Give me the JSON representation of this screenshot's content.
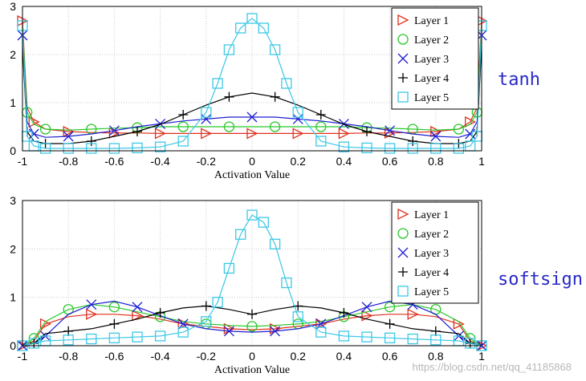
{
  "watermark": "https://blog.csdn.net/qq_41185868",
  "chart_data": [
    {
      "type": "line",
      "side_label": "tanh",
      "xlabel": "Activation Value",
      "xlim": [
        -1,
        1
      ],
      "ylim": [
        0,
        3
      ],
      "xticks": [
        "-1",
        "-0.8",
        "-0.6",
        "-0.4",
        "-0.2",
        "0",
        "0.2",
        "0.4",
        "0.6",
        "0.8",
        "1"
      ],
      "yticks": [
        "0",
        "1",
        "2",
        "3"
      ],
      "grid": true,
      "legend": "top-right",
      "series": [
        {
          "name": "Layer 1",
          "color": "#e0301e",
          "marker": "triangle-right",
          "x": [
            -1,
            -0.98,
            -0.95,
            -0.9,
            -0.8,
            -0.7,
            -0.6,
            -0.5,
            -0.4,
            -0.3,
            -0.2,
            -0.1,
            0,
            0.1,
            0.2,
            0.3,
            0.4,
            0.5,
            0.6,
            0.7,
            0.8,
            0.9,
            0.95,
            0.98,
            1
          ],
          "y": [
            2.7,
            0.9,
            0.6,
            0.45,
            0.4,
            0.38,
            0.37,
            0.37,
            0.36,
            0.36,
            0.36,
            0.36,
            0.36,
            0.36,
            0.36,
            0.36,
            0.36,
            0.37,
            0.37,
            0.38,
            0.4,
            0.45,
            0.6,
            0.9,
            2.7
          ]
        },
        {
          "name": "Layer 2",
          "color": "#28c828",
          "marker": "circle",
          "x": [
            -1,
            -0.98,
            -0.95,
            -0.9,
            -0.8,
            -0.7,
            -0.6,
            -0.5,
            -0.4,
            -0.3,
            -0.2,
            -0.1,
            0,
            0.1,
            0.2,
            0.3,
            0.4,
            0.5,
            0.6,
            0.7,
            0.8,
            0.9,
            0.95,
            0.98,
            1
          ],
          "y": [
            2.6,
            0.8,
            0.55,
            0.45,
            0.43,
            0.45,
            0.47,
            0.48,
            0.5,
            0.5,
            0.5,
            0.5,
            0.5,
            0.5,
            0.5,
            0.5,
            0.5,
            0.48,
            0.47,
            0.45,
            0.43,
            0.45,
            0.55,
            0.8,
            2.6
          ]
        },
        {
          "name": "Layer 3",
          "color": "#1e1ed2",
          "marker": "x",
          "x": [
            -1,
            -0.98,
            -0.95,
            -0.9,
            -0.8,
            -0.7,
            -0.6,
            -0.5,
            -0.4,
            -0.3,
            -0.2,
            -0.1,
            0,
            0.1,
            0.2,
            0.3,
            0.4,
            0.5,
            0.6,
            0.7,
            0.8,
            0.9,
            0.95,
            0.98,
            1
          ],
          "y": [
            2.4,
            0.6,
            0.35,
            0.28,
            0.3,
            0.35,
            0.42,
            0.5,
            0.56,
            0.62,
            0.66,
            0.7,
            0.7,
            0.7,
            0.66,
            0.62,
            0.56,
            0.5,
            0.42,
            0.35,
            0.3,
            0.28,
            0.35,
            0.6,
            2.4
          ]
        },
        {
          "name": "Layer 4",
          "color": "#000000",
          "marker": "plus",
          "x": [
            -1,
            -0.98,
            -0.95,
            -0.9,
            -0.8,
            -0.7,
            -0.6,
            -0.5,
            -0.4,
            -0.3,
            -0.2,
            -0.1,
            0,
            0.1,
            0.2,
            0.3,
            0.4,
            0.5,
            0.6,
            0.7,
            0.8,
            0.9,
            0.95,
            0.98,
            1
          ],
          "y": [
            2.2,
            0.4,
            0.2,
            0.15,
            0.15,
            0.2,
            0.3,
            0.4,
            0.55,
            0.75,
            0.95,
            1.12,
            1.2,
            1.12,
            0.95,
            0.75,
            0.55,
            0.4,
            0.3,
            0.2,
            0.15,
            0.15,
            0.2,
            0.4,
            2.2
          ]
        },
        {
          "name": "Layer 5",
          "color": "#3cc8e6",
          "marker": "square",
          "x": [
            -1,
            -0.98,
            -0.95,
            -0.9,
            -0.8,
            -0.7,
            -0.6,
            -0.5,
            -0.4,
            -0.3,
            -0.2,
            -0.15,
            -0.1,
            -0.05,
            0,
            0.05,
            0.1,
            0.15,
            0.2,
            0.3,
            0.4,
            0.5,
            0.6,
            0.7,
            0.8,
            0.9,
            0.95,
            0.98,
            1
          ],
          "y": [
            2.6,
            0.3,
            0.1,
            0.05,
            0.05,
            0.05,
            0.05,
            0.06,
            0.08,
            0.2,
            0.8,
            1.4,
            2.1,
            2.55,
            2.75,
            2.55,
            2.1,
            1.4,
            0.8,
            0.2,
            0.08,
            0.06,
            0.05,
            0.05,
            0.05,
            0.05,
            0.1,
            0.3,
            2.6
          ]
        }
      ]
    },
    {
      "type": "line",
      "side_label": "softsign",
      "xlabel": "Activation Value",
      "xlim": [
        -1,
        1
      ],
      "ylim": [
        0,
        3
      ],
      "xticks": [
        "-1",
        "-0.8",
        "-0.6",
        "-0.4",
        "-0.2",
        "0",
        "0.2",
        "0.4",
        "0.6",
        "0.8",
        "1"
      ],
      "yticks": [
        "0",
        "1",
        "2",
        "3"
      ],
      "grid": true,
      "legend": "top-right",
      "series": [
        {
          "name": "Layer 1",
          "color": "#e0301e",
          "marker": "triangle-right",
          "x": [
            -1,
            -0.95,
            -0.9,
            -0.8,
            -0.7,
            -0.6,
            -0.5,
            -0.4,
            -0.3,
            -0.2,
            -0.1,
            0,
            0.1,
            0.2,
            0.3,
            0.4,
            0.5,
            0.6,
            0.7,
            0.8,
            0.9,
            0.95,
            1
          ],
          "y": [
            0.0,
            0.1,
            0.45,
            0.6,
            0.65,
            0.65,
            0.62,
            0.55,
            0.45,
            0.4,
            0.35,
            0.33,
            0.35,
            0.4,
            0.45,
            0.55,
            0.62,
            0.65,
            0.65,
            0.6,
            0.45,
            0.1,
            0.0
          ]
        },
        {
          "name": "Layer 2",
          "color": "#28c828",
          "marker": "circle",
          "x": [
            -1,
            -0.95,
            -0.9,
            -0.8,
            -0.7,
            -0.6,
            -0.5,
            -0.4,
            -0.3,
            -0.2,
            -0.1,
            0,
            0.1,
            0.2,
            0.3,
            0.4,
            0.5,
            0.6,
            0.7,
            0.8,
            0.9,
            0.95,
            1
          ],
          "y": [
            0.0,
            0.15,
            0.5,
            0.75,
            0.85,
            0.8,
            0.7,
            0.6,
            0.5,
            0.45,
            0.42,
            0.4,
            0.42,
            0.45,
            0.5,
            0.6,
            0.7,
            0.8,
            0.85,
            0.75,
            0.5,
            0.15,
            0.0
          ]
        },
        {
          "name": "Layer 3",
          "color": "#1e1ed2",
          "marker": "x",
          "x": [
            -1,
            -0.95,
            -0.9,
            -0.8,
            -0.7,
            -0.6,
            -0.5,
            -0.4,
            -0.3,
            -0.2,
            -0.1,
            0,
            0.1,
            0.2,
            0.3,
            0.4,
            0.5,
            0.6,
            0.7,
            0.8,
            0.9,
            0.95,
            1
          ],
          "y": [
            0.0,
            0.05,
            0.2,
            0.65,
            0.85,
            0.92,
            0.8,
            0.62,
            0.45,
            0.35,
            0.3,
            0.28,
            0.3,
            0.35,
            0.45,
            0.62,
            0.8,
            0.92,
            0.85,
            0.65,
            0.2,
            0.05,
            0.0
          ]
        },
        {
          "name": "Layer 4",
          "color": "#000000",
          "marker": "plus",
          "x": [
            -1,
            -0.95,
            -0.9,
            -0.8,
            -0.7,
            -0.6,
            -0.5,
            -0.4,
            -0.3,
            -0.2,
            -0.1,
            0,
            0.1,
            0.2,
            0.3,
            0.4,
            0.5,
            0.6,
            0.7,
            0.8,
            0.9,
            0.95,
            1
          ],
          "y": [
            0.0,
            0.05,
            0.25,
            0.3,
            0.35,
            0.45,
            0.55,
            0.68,
            0.78,
            0.82,
            0.75,
            0.65,
            0.75,
            0.82,
            0.78,
            0.68,
            0.55,
            0.45,
            0.35,
            0.3,
            0.25,
            0.05,
            0.0
          ]
        },
        {
          "name": "Layer 5",
          "color": "#3cc8e6",
          "marker": "square",
          "x": [
            -1,
            -0.95,
            -0.9,
            -0.8,
            -0.7,
            -0.6,
            -0.5,
            -0.4,
            -0.3,
            -0.2,
            -0.15,
            -0.1,
            -0.05,
            0,
            0.05,
            0.1,
            0.15,
            0.2,
            0.3,
            0.4,
            0.5,
            0.6,
            0.7,
            0.8,
            0.9,
            0.95,
            1
          ],
          "y": [
            0.0,
            0.05,
            0.1,
            0.12,
            0.14,
            0.16,
            0.18,
            0.2,
            0.28,
            0.5,
            0.9,
            1.6,
            2.3,
            2.7,
            2.55,
            2.1,
            1.3,
            0.6,
            0.28,
            0.2,
            0.18,
            0.16,
            0.14,
            0.12,
            0.1,
            0.05,
            0.0
          ]
        }
      ]
    }
  ]
}
